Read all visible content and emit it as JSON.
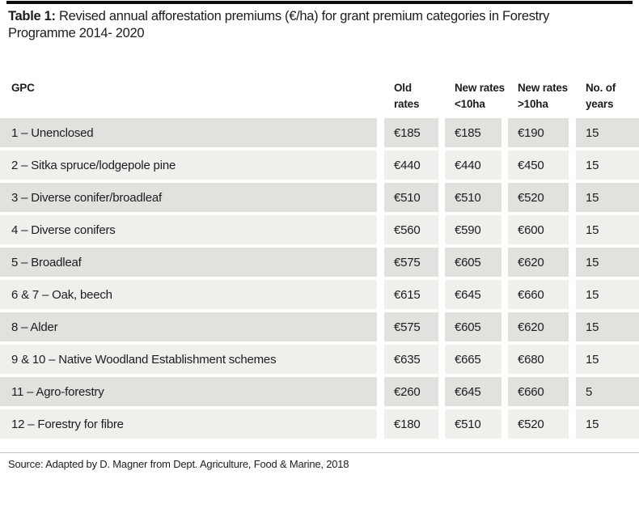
{
  "title": {
    "prefix": "Table 1:",
    "line1_rest": " Revised annual afforestation premiums (€/ha) for grant premium categories in Forestry",
    "line2": "Programme 2014- 2020"
  },
  "table": {
    "columns": [
      {
        "line1": "GPC",
        "line2": ""
      },
      {
        "line1": "Old",
        "line2": "rates"
      },
      {
        "line1": "New rates",
        "line2": "<10ha"
      },
      {
        "line1": "New rates",
        "line2": ">10ha"
      },
      {
        "line1": "No. of",
        "line2": "years"
      }
    ],
    "rows": [
      {
        "gpc": "1 – Unenclosed",
        "old": "€185",
        "new_lt10": "€185",
        "new_gt10": "€190",
        "years": "15"
      },
      {
        "gpc": "2 – Sitka spruce/lodgepole pine",
        "old": "€440",
        "new_lt10": "€440",
        "new_gt10": "€450",
        "years": "15"
      },
      {
        "gpc": "3 – Diverse conifer/broadleaf",
        "old": "€510",
        "new_lt10": "€510",
        "new_gt10": "€520",
        "years": "15"
      },
      {
        "gpc": "4 – Diverse conifers",
        "old": "€560",
        "new_lt10": "€590",
        "new_gt10": "€600",
        "years": "15"
      },
      {
        "gpc": "5 – Broadleaf",
        "old": "€575",
        "new_lt10": "€605",
        "new_gt10": "€620",
        "years": "15"
      },
      {
        "gpc": "6 & 7 – Oak, beech",
        "old": "€615",
        "new_lt10": "€645",
        "new_gt10": "€660",
        "years": "15"
      },
      {
        "gpc": "8 – Alder",
        "old": "€575",
        "new_lt10": "€605",
        "new_gt10": "€620",
        "years": "15"
      },
      {
        "gpc": "9 & 10 – Native Woodland Establishment schemes",
        "old": "€635",
        "new_lt10": "€665",
        "new_gt10": "€680",
        "years": "15"
      },
      {
        "gpc": "11 – Agro-forestry",
        "old": "€260",
        "new_lt10": "€645",
        "new_gt10": "€660",
        "years": "5"
      },
      {
        "gpc": "12 – Forestry for fibre",
        "old": "€180",
        "new_lt10": "€510",
        "new_gt10": "€520",
        "years": "15"
      }
    ]
  },
  "source": "Source: Adapted by D. Magner from Dept. Agriculture, Food & Marine, 2018",
  "colors": {
    "row_dark": "#e2e1de",
    "row_light": "#f0efec",
    "text": "#1d1d1b",
    "top_rule": "#0d0d0d",
    "bottom_rule": "#c4c4c2"
  }
}
